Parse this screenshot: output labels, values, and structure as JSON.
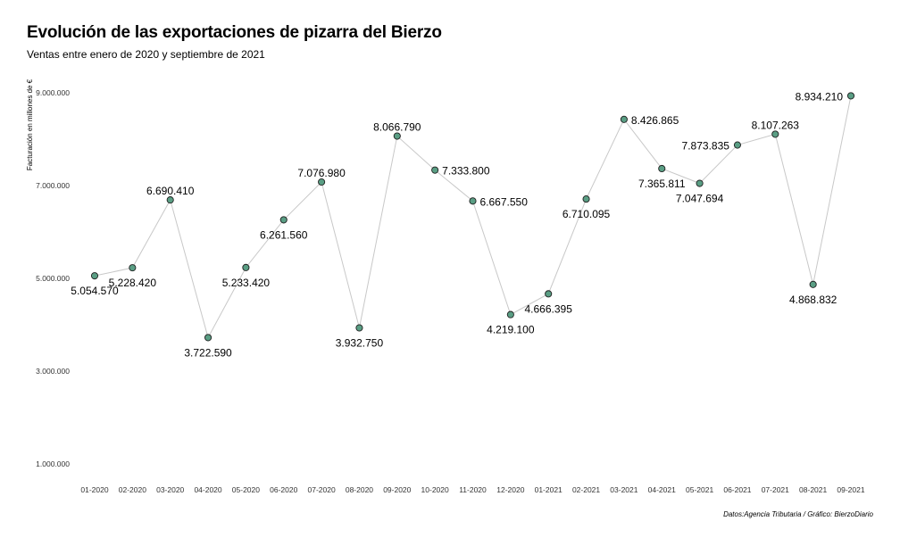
{
  "chart_data": {
    "type": "line",
    "title": "Evolución de las exportaciones de pizarra del Bierzo",
    "subtitle": "Ventas entre enero de 2020 y septiembre de 2021",
    "ylabel": "Facturación en millones de €",
    "caption": "Datos:Agencia Tributaria / Gráfico: BierzoDiario",
    "ylim": [
      500000,
      9300000
    ],
    "yticks": [
      1000000,
      3000000,
      5000000,
      7000000,
      9000000
    ],
    "ytick_labels": [
      "1.000.000",
      "3.000.000",
      "5.000.000",
      "7.000.000",
      "9.000.000"
    ],
    "grid": false,
    "line_color": "#c8c8c8",
    "marker_color": "#5a9e84",
    "categories": [
      "01-2020",
      "02-2020",
      "03-2020",
      "04-2020",
      "05-2020",
      "06-2020",
      "07-2020",
      "08-2020",
      "09-2020",
      "10-2020",
      "11-2020",
      "12-2020",
      "01-2021",
      "02-2021",
      "03-2021",
      "04-2021",
      "05-2021",
      "06-2021",
      "07-2021",
      "08-2021",
      "09-2021"
    ],
    "values": [
      5054570,
      5228420,
      6690410,
      3722590,
      5233420,
      6261560,
      7076980,
      3932750,
      8066790,
      7333800,
      6667550,
      4219100,
      4666395,
      6710095,
      8426865,
      7365811,
      7047694,
      7873835,
      8107263,
      4868832,
      8934210
    ],
    "value_labels": [
      "5.054.570",
      "5.228.420",
      "6.690.410",
      "3.722.590",
      "5.233.420",
      "6.261.560",
      "7.076.980",
      "3.932.750",
      "8.066.790",
      "7.333.800",
      "6.667.550",
      "4.219.100",
      "4.666.395",
      "6.710.095",
      "8.426.865",
      "7.365.811",
      "7.047.694",
      "7.873.835",
      "8.107.263",
      "4.868.832",
      "8.934.210"
    ]
  }
}
